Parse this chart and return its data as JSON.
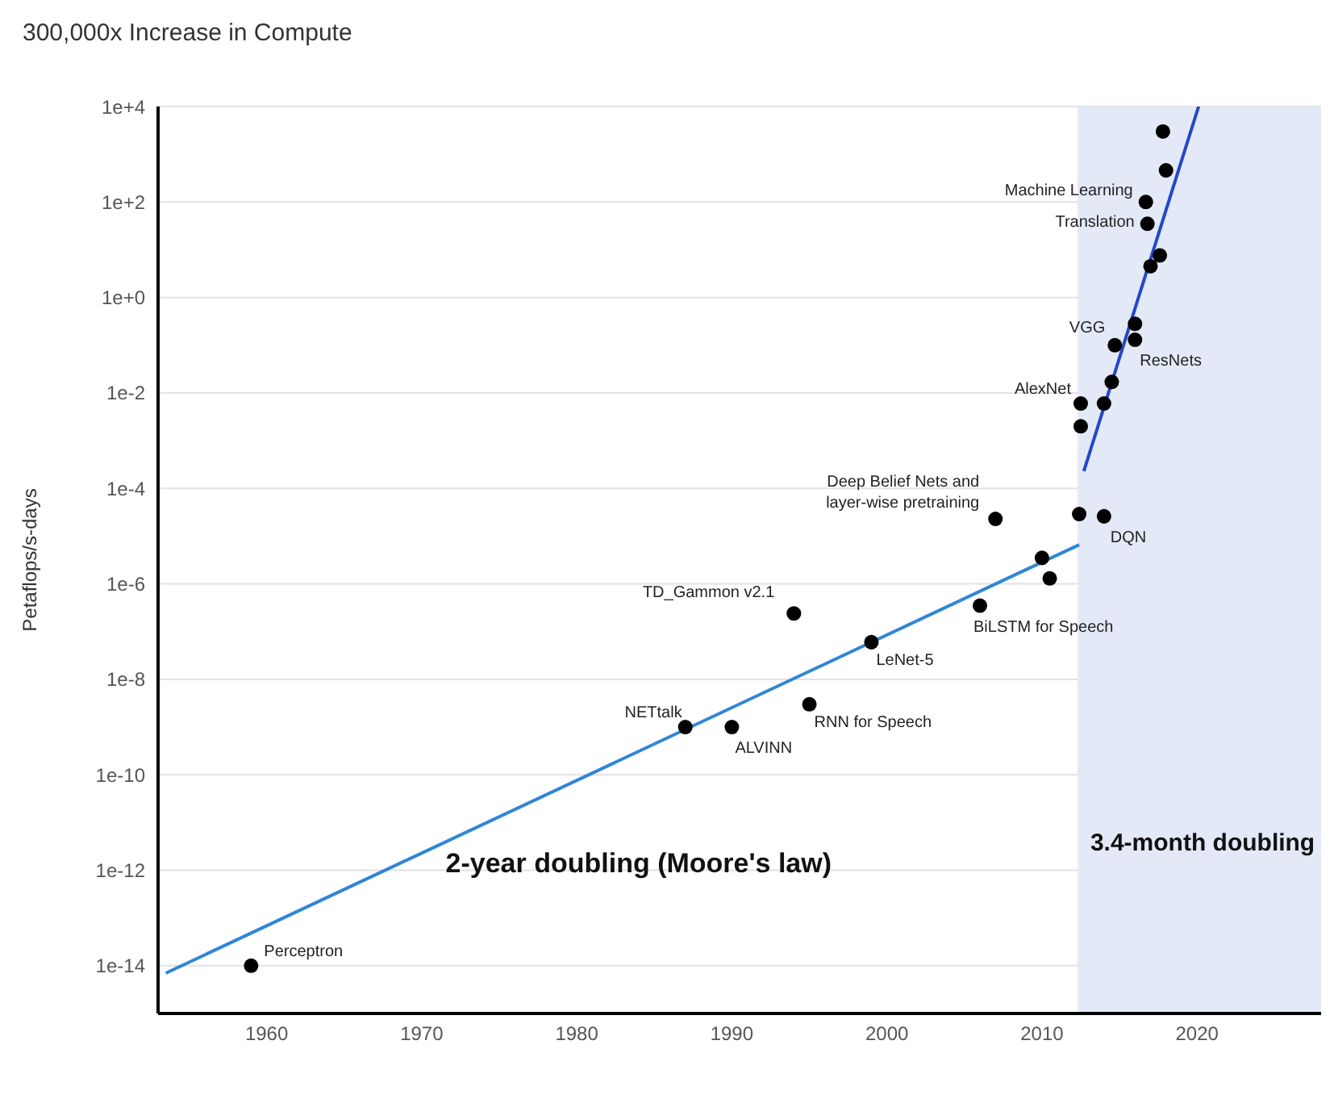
{
  "chart_data": {
    "type": "scatter",
    "title": "300,000x Increase in Compute",
    "ylabel": "Petaflops/s-days",
    "log": "y",
    "grid": "y",
    "legend": false,
    "marker": "circle",
    "xlim": [
      1953,
      2028
    ],
    "xticks": [
      1960,
      1970,
      1980,
      1990,
      2000,
      2010,
      2020
    ],
    "ylim": [
      1e-15,
      10000
    ],
    "yticks": [
      {
        "value": 10000,
        "label": "1e+4"
      },
      {
        "value": 100,
        "label": "1e+2"
      },
      {
        "value": 1,
        "label": "1e+0"
      },
      {
        "value": 0.01,
        "label": "1e-2"
      },
      {
        "value": 0.0001,
        "label": "1e-4"
      },
      {
        "value": 1e-06,
        "label": "1e-6"
      },
      {
        "value": 1e-08,
        "label": "1e-8"
      },
      {
        "value": 1e-10,
        "label": "1e-10"
      },
      {
        "value": 1e-12,
        "label": "1e-12"
      },
      {
        "value": 1e-14,
        "label": "1e-14"
      }
    ],
    "series": [
      {
        "color": "#000000",
        "x": [
          1959,
          1987,
          1990,
          1995,
          1994,
          1999,
          2006,
          2007,
          2014,
          2012.5,
          2014.7,
          2016,
          2016.7,
          2016.8,
          2010,
          2010.5,
          2012.4,
          2012.5,
          2014,
          2014.5,
          2016,
          2017,
          2017.6,
          2018,
          2017.8
        ],
        "values": [
          1e-14,
          1e-09,
          1e-09,
          3e-09,
          2.4e-07,
          6e-08,
          3.5e-07,
          2.3e-05,
          2.6e-05,
          0.006,
          0.1,
          0.13,
          100,
          35,
          3.5e-06,
          1.3e-06,
          2.9e-05,
          0.002,
          0.006,
          0.017,
          0.28,
          4.5,
          7.6,
          460,
          3000
        ]
      },
      {
        "type": "line",
        "marker": "none",
        "name": "2-year doubling (Moore's law)",
        "color": "#2f86d8",
        "x": [
          1953.5,
          2012.4
        ],
        "values": [
          7e-15,
          6.6e-06
        ]
      },
      {
        "type": "line",
        "marker": "none",
        "color": "#2548c8",
        "x": [
          2012.7,
          2020.1
        ],
        "values": [
          0.00023,
          10000
        ]
      }
    ],
    "bands": [
      {
        "axis": "x",
        "from": 2012.3,
        "to": 2028,
        "label": "3.4-month doubling",
        "color": "#e3e9f7"
      }
    ],
    "annotations": [
      {
        "text": "Perceptron",
        "x": 1959,
        "y": 1e-14
      },
      {
        "text": "NETtalk",
        "x": 1987,
        "y": 1e-09
      },
      {
        "text": "ALVINN",
        "x": 1990,
        "y": 1e-09
      },
      {
        "text": "RNN for Speech",
        "x": 1995,
        "y": 3e-09
      },
      {
        "text": "TD_Gammon v2.1",
        "x": 1994,
        "y": 2.4e-07
      },
      {
        "text": "LeNet-5",
        "x": 1999,
        "y": 6e-08
      },
      {
        "text": "BiLSTM for Speech",
        "x": 2006,
        "y": 3.5e-07
      },
      {
        "text": "Deep Belief Nets and\nlayer-wise pretraining",
        "x": 2007,
        "y": 2.3e-05
      },
      {
        "text": "DQN",
        "x": 2014,
        "y": 2.6e-05
      },
      {
        "text": "AlexNet",
        "x": 2012.5,
        "y": 0.006
      },
      {
        "text": "VGG",
        "x": 2014.7,
        "y": 0.1
      },
      {
        "text": "ResNets",
        "x": 2016,
        "y": 0.13
      },
      {
        "text": "Machine Learning",
        "x": 2016.7,
        "y": 100
      },
      {
        "text": "Translation",
        "x": 2016.8,
        "y": 35
      }
    ]
  }
}
